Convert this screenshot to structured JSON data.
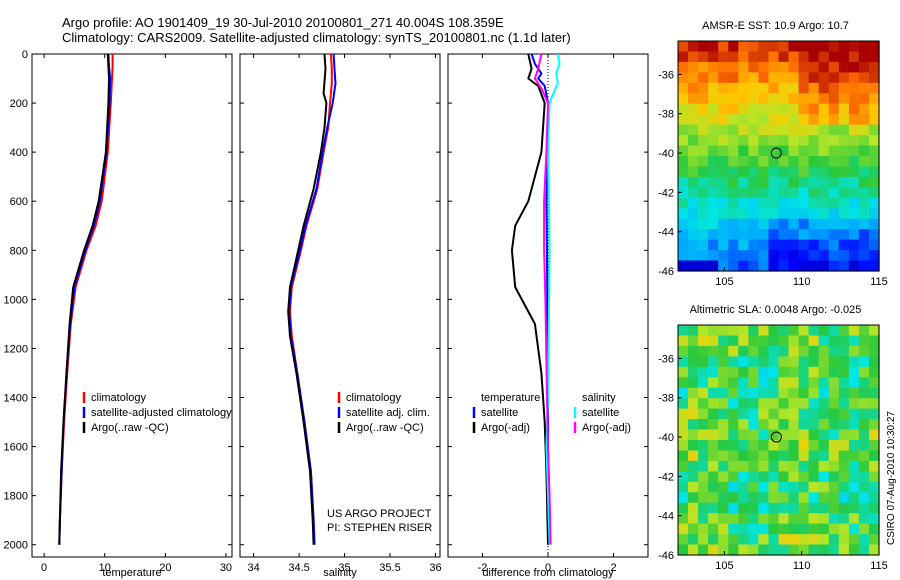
{
  "title_line1": "Argo profile: AO 1901409_19 30-Jul-2010 20100801_271 40.004S 108.359E",
  "title_line2": "Climatology: CARS2009. Satellite-adjusted climatology: synTS_20100801.nc (1.1d later)",
  "stamp": "CSIRO 07-Aug-2010 10:30:27",
  "colors": {
    "red": "#ff0000",
    "blue": "#0000ff",
    "black": "#000000",
    "cyan": "#00ffff",
    "magenta": "#ff00ff"
  },
  "chart_data": [
    {
      "id": "temp",
      "type": "line",
      "xlabel": "temperature",
      "ylabel": "",
      "xlim": [
        -2,
        31
      ],
      "ylim": [
        2050,
        0
      ],
      "xticks": [
        0,
        10,
        20,
        30
      ],
      "xtick_labels": [
        "0",
        "10",
        "20",
        "30"
      ],
      "yticks": [
        0,
        200,
        400,
        600,
        800,
        1000,
        1200,
        1400,
        1600,
        1800,
        2000
      ],
      "ytick_labels": [
        "0",
        "200",
        "400",
        "600",
        "800",
        "1000",
        "1200",
        "1400",
        "1600",
        "1800",
        "2000"
      ],
      "legend": [
        "climatology",
        "satellite-adjusted climatology",
        "Argo(..raw -QC)"
      ],
      "series": [
        {
          "name": "climatology",
          "color": "red",
          "points": [
            [
              11.3,
              0
            ],
            [
              11.3,
              50
            ],
            [
              11.2,
              100
            ],
            [
              11,
              200
            ],
            [
              10.5,
              400
            ],
            [
              9.5,
              600
            ],
            [
              8.5,
              700
            ],
            [
              7,
              800
            ],
            [
              5.2,
              950
            ],
            [
              4.4,
              1100
            ],
            [
              3.8,
              1300
            ],
            [
              3.3,
              1500
            ],
            [
              2.9,
              1700
            ],
            [
              2.6,
              1900
            ],
            [
              2.5,
              2000
            ]
          ]
        },
        {
          "name": "satellite-adjusted climatology",
          "color": "blue",
          "points": [
            [
              10.6,
              0
            ],
            [
              10.7,
              50
            ],
            [
              10.9,
              100
            ],
            [
              10.8,
              200
            ],
            [
              10.3,
              400
            ],
            [
              9.2,
              600
            ],
            [
              8.2,
              700
            ],
            [
              6.8,
              800
            ],
            [
              5,
              950
            ],
            [
              4.3,
              1100
            ],
            [
              3.7,
              1300
            ],
            [
              3.2,
              1500
            ],
            [
              2.9,
              1700
            ],
            [
              2.6,
              1900
            ],
            [
              2.5,
              2000
            ]
          ]
        },
        {
          "name": "Argo(..raw -QC)",
          "color": "black",
          "points": [
            [
              10.5,
              0
            ],
            [
              10.6,
              50
            ],
            [
              10.7,
              100
            ],
            [
              10.6,
              200
            ],
            [
              10.2,
              400
            ],
            [
              9,
              600
            ],
            [
              8,
              700
            ],
            [
              6.6,
              800
            ],
            [
              4.8,
              950
            ],
            [
              4.2,
              1100
            ],
            [
              3.7,
              1300
            ],
            [
              3.2,
              1500
            ],
            [
              2.8,
              1700
            ],
            [
              2.6,
              1900
            ],
            [
              2.5,
              2000
            ]
          ]
        }
      ]
    },
    {
      "id": "sal",
      "type": "line",
      "xlabel": "salinity",
      "ylabel": "",
      "xlim": [
        33.85,
        36.05
      ],
      "ylim": [
        2050,
        0
      ],
      "xticks": [
        34,
        34.5,
        35,
        35.5,
        36
      ],
      "xtick_labels": [
        "34",
        "34.5",
        "35",
        "35.5",
        "36"
      ],
      "legend": [
        "climatology",
        "satellite adj. clim.",
        "Argo(..raw -QC)"
      ],
      "annotation": [
        "US ARGO PROJECT",
        "PI: STEPHEN RISER"
      ],
      "series": [
        {
          "name": "climatology",
          "color": "red",
          "points": [
            [
              34.85,
              0
            ],
            [
              34.86,
              60
            ],
            [
              34.86,
              120
            ],
            [
              34.84,
              200
            ],
            [
              34.82,
              300
            ],
            [
              34.77,
              400
            ],
            [
              34.7,
              550
            ],
            [
              34.58,
              700
            ],
            [
              34.52,
              800
            ],
            [
              34.42,
              950
            ],
            [
              34.4,
              1050
            ],
            [
              34.42,
              1150
            ],
            [
              34.48,
              1300
            ],
            [
              34.56,
              1500
            ],
            [
              34.63,
              1700
            ],
            [
              34.66,
              1900
            ],
            [
              34.67,
              2000
            ]
          ]
        },
        {
          "name": "satellite adj. clim.",
          "color": "blue",
          "points": [
            [
              34.88,
              0
            ],
            [
              34.89,
              60
            ],
            [
              34.9,
              120
            ],
            [
              34.87,
              200
            ],
            [
              34.81,
              300
            ],
            [
              34.76,
              400
            ],
            [
              34.69,
              550
            ],
            [
              34.57,
              700
            ],
            [
              34.51,
              800
            ],
            [
              34.41,
              950
            ],
            [
              34.39,
              1050
            ],
            [
              34.41,
              1150
            ],
            [
              34.48,
              1300
            ],
            [
              34.56,
              1500
            ],
            [
              34.63,
              1700
            ],
            [
              34.66,
              1900
            ],
            [
              34.67,
              2000
            ]
          ]
        },
        {
          "name": "Argo(..raw -QC)",
          "color": "black",
          "points": [
            [
              34.78,
              0
            ],
            [
              34.79,
              60
            ],
            [
              34.77,
              160
            ],
            [
              34.8,
              200
            ],
            [
              34.78,
              300
            ],
            [
              34.74,
              400
            ],
            [
              34.66,
              550
            ],
            [
              34.55,
              700
            ],
            [
              34.49,
              800
            ],
            [
              34.4,
              950
            ],
            [
              34.38,
              1050
            ],
            [
              34.4,
              1150
            ],
            [
              34.47,
              1300
            ],
            [
              34.55,
              1500
            ],
            [
              34.62,
              1700
            ],
            [
              34.65,
              1900
            ],
            [
              34.66,
              2000
            ]
          ]
        }
      ]
    },
    {
      "id": "diff",
      "type": "line",
      "xlabel": "difference from climatology",
      "ylabel": "",
      "xlim": [
        -3.05,
        3.05
      ],
      "ylim": [
        2050,
        0
      ],
      "xticks": [
        -2,
        0,
        2
      ],
      "xtick_labels": [
        "-2",
        "0",
        "2"
      ],
      "legend_temperature_title": "temperature",
      "legend_salinity_title": "salinity",
      "legend_temperature": [
        "satellite",
        "Argo(-adj)"
      ],
      "legend_salinity": [
        "satellite",
        "Argo(-adj)"
      ],
      "series": [
        {
          "name": "temperature satellite",
          "color": "blue",
          "points": [
            [
              -0.5,
              0
            ],
            [
              -0.4,
              40
            ],
            [
              -0.2,
              80
            ],
            [
              -0.3,
              100
            ],
            [
              -0.1,
              130
            ],
            [
              0,
              200
            ],
            [
              0,
              400
            ],
            [
              -0.05,
              600
            ],
            [
              -0.03,
              800
            ],
            [
              -0.02,
              1000
            ],
            [
              0,
              1500
            ],
            [
              0,
              2000
            ]
          ]
        },
        {
          "name": "temperature Argo(-adj)",
          "color": "black",
          "points": [
            [
              -0.6,
              0
            ],
            [
              -0.5,
              60
            ],
            [
              -0.6,
              100
            ],
            [
              -0.3,
              130
            ],
            [
              -0.1,
              200
            ],
            [
              -0.2,
              400
            ],
            [
              -0.6,
              600
            ],
            [
              -1,
              700
            ],
            [
              -1.1,
              800
            ],
            [
              -1,
              950
            ],
            [
              -0.4,
              1100
            ],
            [
              -0.2,
              1300
            ],
            [
              -0.1,
              1500
            ],
            [
              -0.05,
              1700
            ],
            [
              0,
              2000
            ]
          ]
        },
        {
          "name": "salinity satellite",
          "color": "cyan",
          "points": [
            [
              0.3,
              0
            ],
            [
              0.35,
              40
            ],
            [
              0.25,
              80
            ],
            [
              0.3,
              120
            ],
            [
              0.1,
              180
            ],
            [
              0.05,
              200
            ],
            [
              0,
              400
            ],
            [
              0.05,
              800
            ],
            [
              0,
              1400
            ],
            [
              -0.05,
              1600
            ],
            [
              0,
              1800
            ],
            [
              0.05,
              2000
            ]
          ]
        },
        {
          "name": "salinity Argo(-adj)",
          "color": "magenta",
          "points": [
            [
              -0.2,
              0
            ],
            [
              -0.3,
              60
            ],
            [
              -0.4,
              100
            ],
            [
              -0.2,
              140
            ],
            [
              0,
              200
            ],
            [
              -0.05,
              400
            ],
            [
              -0.12,
              600
            ],
            [
              -0.12,
              800
            ],
            [
              -0.08,
              1000
            ],
            [
              -0.03,
              1400
            ],
            [
              0,
              1600
            ],
            [
              0.05,
              1800
            ],
            [
              0.08,
              2000
            ]
          ]
        }
      ]
    },
    {
      "id": "sst_map",
      "type": "heatmap",
      "title": "AMSR-E SST: 10.9 Argo: 10.7",
      "xlim": [
        102,
        115
      ],
      "ylim": [
        -46,
        -34.3
      ],
      "xticks": [
        105,
        110,
        115
      ],
      "xtick_labels": [
        "105",
        "110",
        "115"
      ],
      "yticks": [
        -36,
        -38,
        -40,
        -42,
        -44,
        -46
      ],
      "ytick_labels": [
        "-36",
        "-38",
        "-40",
        "-42",
        "-44",
        "-46"
      ],
      "marker": [
        108.36,
        -40.0
      ]
    },
    {
      "id": "sla_map",
      "type": "heatmap",
      "title": "Altimetric SLA: 0.0048 Argo: -0.025",
      "xlim": [
        102,
        115
      ],
      "ylim": [
        -46,
        -34.3
      ],
      "xticks": [
        105,
        110,
        115
      ],
      "xtick_labels": [
        "105",
        "110",
        "115"
      ],
      "yticks": [
        -36,
        -38,
        -40,
        -42,
        -44,
        -46
      ],
      "ytick_labels": [
        "-36",
        "-38",
        "-40",
        "-42",
        "-44",
        "-46"
      ],
      "marker": [
        108.36,
        -40.0
      ]
    }
  ]
}
